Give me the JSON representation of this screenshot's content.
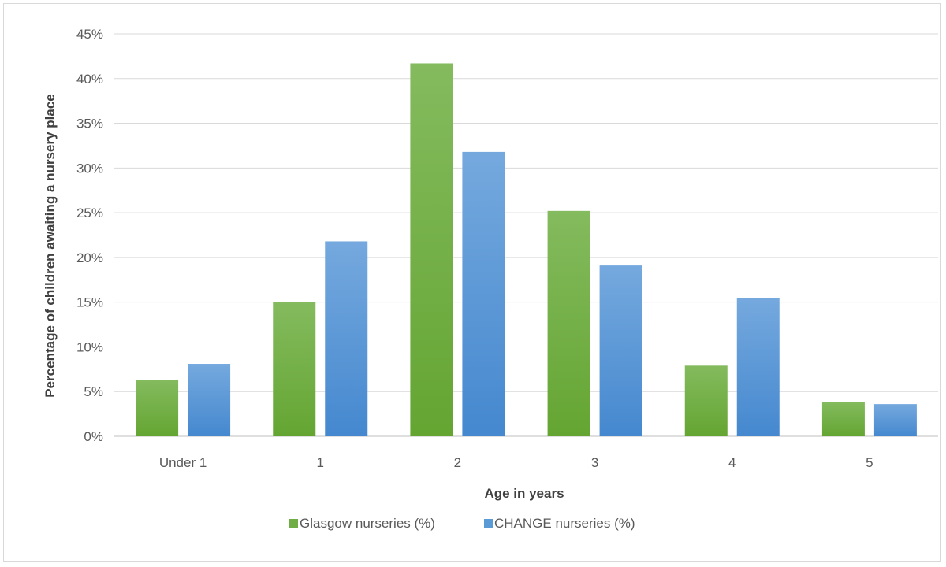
{
  "chart_data": {
    "type": "bar",
    "title": "",
    "xlabel": "Age in years",
    "ylabel": "Percentage of children awaiting a nursery place",
    "categories": [
      "Under 1",
      "1",
      "2",
      "3",
      "4",
      "5"
    ],
    "series": [
      {
        "name": "Glasgow nurseries (%)",
        "color": "#70ad47",
        "values": [
          6.3,
          15.0,
          41.7,
          25.2,
          7.9,
          3.8
        ]
      },
      {
        "name": "CHANGE nurseries (%)",
        "color": "#5b9bd5",
        "values": [
          8.1,
          21.8,
          31.8,
          19.1,
          15.5,
          3.6
        ]
      }
    ],
    "ylim": [
      0,
      45
    ],
    "ytick_step": 5,
    "ytick_suffix": "%",
    "grid": true,
    "legend_position": "bottom"
  }
}
